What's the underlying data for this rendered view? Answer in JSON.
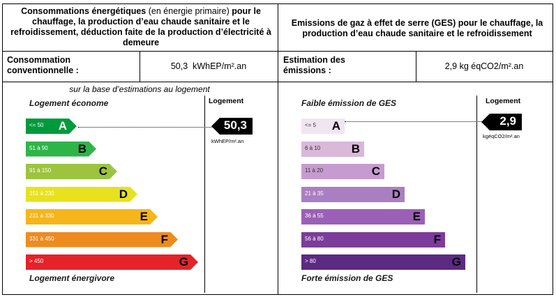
{
  "energy": {
    "header_bold_1": "Consommations énergétiques",
    "header_normal": "(en énergie primaire)",
    "header_bold_2": "pour le chauffage, la production d’eau chaude sanitaire et le refroidissement, déduction faite de la production d’électricité à demeure",
    "row_label": "Consommation conventionnelle :",
    "row_value": "50,3  kWhEP/m².an",
    "note": "sur la base d’estimations au logement",
    "top_label": "Logement économe",
    "bottom_label": "Logement énergivore",
    "column_head": "Logement",
    "marker_value": "50,3",
    "marker_unit": "kWhEP/m².an",
    "current_class": "A",
    "classes": [
      {
        "range": "<= 50",
        "grade": "A",
        "color": "#009a3d"
      },
      {
        "range": "51 à 90",
        "grade": "B",
        "color": "#2fb44a"
      },
      {
        "range": "91 à 150",
        "grade": "C",
        "color": "#9cc43e"
      },
      {
        "range": "151 à 230",
        "grade": "D",
        "color": "#e7e21d"
      },
      {
        "range": "231 à 330",
        "grade": "E",
        "color": "#f6b51a"
      },
      {
        "range": "331 à 450",
        "grade": "F",
        "color": "#ee8b1f"
      },
      {
        "range": "> 450",
        "grade": "G",
        "color": "#e4232a"
      }
    ]
  },
  "ges": {
    "header": "Emissions de gaz à effet de serre (GES) pour le chauffage, la production d’eau chaude sanitaire et le refroidissement",
    "row_label": "Estimation des émissions :",
    "row_value": "2,9 kg éqCO2/m².an",
    "top_label": "Faible émission de GES",
    "bottom_label": "Forte émission de GES",
    "column_head": "Logement",
    "marker_value": "2,9",
    "marker_unit": "kgéqCO2/m².an",
    "current_class": "A",
    "classes": [
      {
        "range": "<= 5",
        "grade": "A",
        "color": "#f2e5f2"
      },
      {
        "range": "6 à 10",
        "grade": "B",
        "color": "#d9b8d9"
      },
      {
        "range": "11 à 20",
        "grade": "C",
        "color": "#c69cd0"
      },
      {
        "range": "21 à 35",
        "grade": "D",
        "color": "#aa7fc1"
      },
      {
        "range": "36 à 55",
        "grade": "E",
        "color": "#9a60b6"
      },
      {
        "range": "56 à 80",
        "grade": "F",
        "color": "#7c3c9a"
      },
      {
        "range": "> 80",
        "grade": "G",
        "color": "#5c2a82"
      }
    ]
  }
}
